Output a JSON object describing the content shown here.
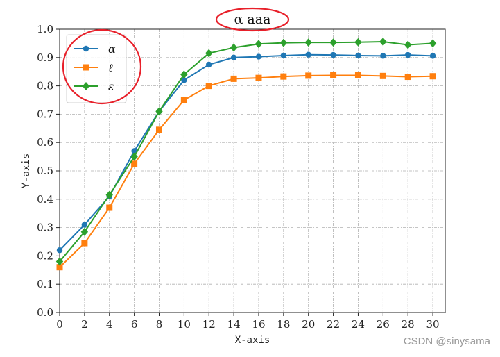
{
  "chart_data": {
    "type": "line",
    "title": "α aaa",
    "xlabel": "X-axis",
    "ylabel": "Y-axis",
    "xlim": [
      0,
      31
    ],
    "ylim": [
      0.0,
      1.0
    ],
    "xticks": [
      0,
      2,
      4,
      6,
      8,
      10,
      12,
      14,
      16,
      18,
      20,
      22,
      24,
      26,
      28,
      30
    ],
    "yticks": [
      "0.0",
      "0.1",
      "0.2",
      "0.3",
      "0.4",
      "0.5",
      "0.6",
      "0.7",
      "0.8",
      "0.9",
      "1.0"
    ],
    "grid": true,
    "legend_position": "top-left",
    "x": [
      0,
      2,
      4,
      6,
      8,
      10,
      12,
      14,
      16,
      18,
      20,
      22,
      24,
      26,
      28,
      30
    ],
    "series": [
      {
        "name": "α",
        "color": "#1f77b4",
        "marker": "circle",
        "values": [
          0.22,
          0.31,
          0.41,
          0.57,
          0.71,
          0.82,
          0.875,
          0.9,
          0.903,
          0.907,
          0.91,
          0.909,
          0.907,
          0.906,
          0.909,
          0.906
        ]
      },
      {
        "name": "ℓ",
        "color": "#ff7f0e",
        "marker": "square",
        "values": [
          0.16,
          0.245,
          0.37,
          0.525,
          0.645,
          0.75,
          0.8,
          0.825,
          0.828,
          0.833,
          0.836,
          0.837,
          0.837,
          0.835,
          0.832,
          0.834
        ]
      },
      {
        "name": "ε",
        "color": "#2ca02c",
        "marker": "diamond",
        "values": [
          0.18,
          0.285,
          0.415,
          0.55,
          0.71,
          0.84,
          0.915,
          0.935,
          0.948,
          0.952,
          0.953,
          0.953,
          0.954,
          0.956,
          0.945,
          0.95
        ]
      }
    ],
    "annotations": {
      "title_circled": true,
      "legend_circled": true,
      "circle_color": "#e8202a"
    }
  },
  "watermark": "CSDN @sinysama"
}
